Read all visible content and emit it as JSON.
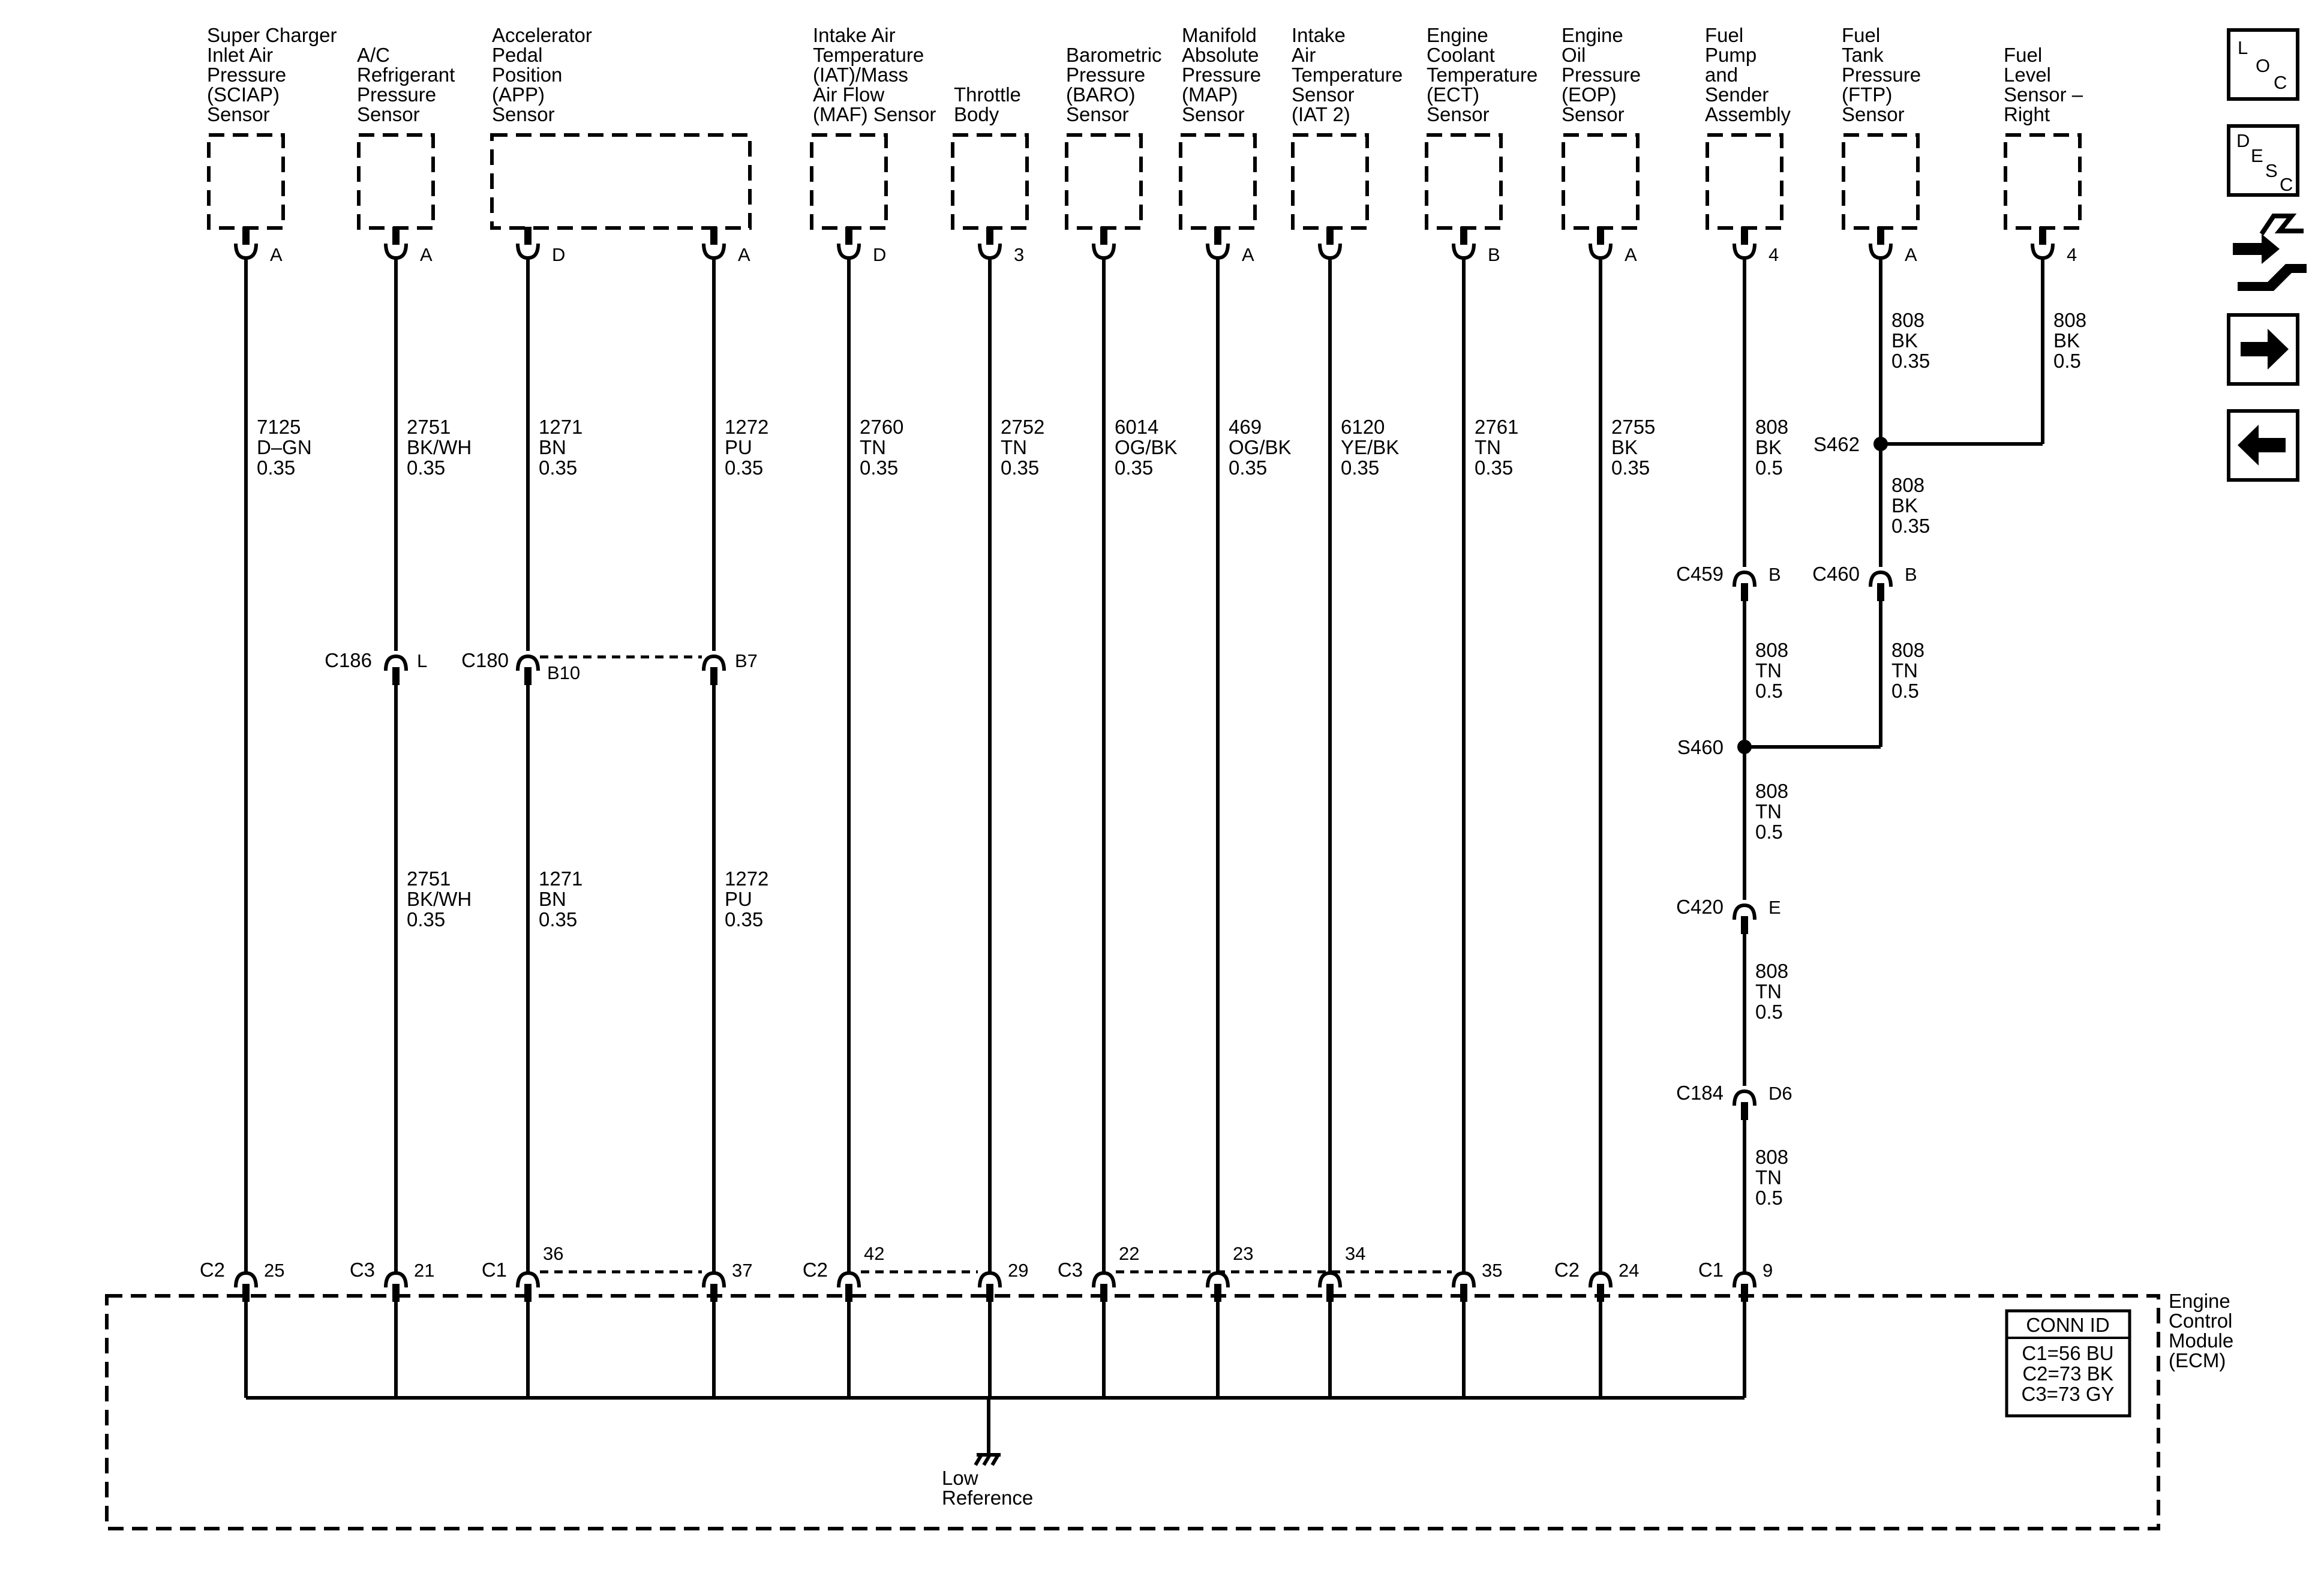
{
  "sensors": [
    {
      "label": [
        "Super Charger",
        "Inlet Air",
        "Pressure",
        "(SCIAP)",
        "Sensor"
      ],
      "pin": "A"
    },
    {
      "label": [
        "A/C",
        "Refrigerant",
        "Pressure",
        "Sensor"
      ],
      "pin": "A"
    },
    {
      "label": [
        "Accelerator",
        "Pedal",
        "Position",
        "(APP)",
        "Sensor"
      ],
      "pins": [
        "D",
        "A"
      ]
    },
    {
      "label": [
        "Intake Air",
        "Temperature",
        "(IAT)/Mass",
        "Air Flow",
        "(MAF) Sensor"
      ],
      "pin": "D"
    },
    {
      "label": [
        "Throttle",
        "Body"
      ],
      "pin": "3"
    },
    {
      "label": [
        "Barometric",
        "Pressure",
        "(BARO)",
        "Sensor"
      ],
      "pin": ""
    },
    {
      "label": [
        "Manifold",
        "Absolute",
        "Pressure",
        "(MAP)",
        "Sensor"
      ],
      "pin": "A"
    },
    {
      "label": [
        "Intake",
        "Air",
        "Temperature",
        "Sensor",
        "(IAT 2)"
      ],
      "pin": ""
    },
    {
      "label": [
        "Engine",
        "Coolant",
        "Temperature",
        "(ECT)",
        "Sensor"
      ],
      "pin": "B"
    },
    {
      "label": [
        "Engine",
        "Oil",
        "Pressure",
        "(EOP)",
        "Sensor"
      ],
      "pin": "A"
    },
    {
      "label": [
        "Fuel",
        "Pump",
        "and",
        "Sender",
        "Assembly"
      ],
      "pin": "4"
    },
    {
      "label": [
        "Fuel",
        "Tank",
        "Pressure",
        "(FTP)",
        "Sensor"
      ],
      "pin": "A"
    },
    {
      "label": [
        "Fuel",
        "Level",
        "Sensor –",
        "Right"
      ],
      "pin": "4"
    }
  ],
  "wires": [
    {
      "upper": [
        "7125",
        "D–GN",
        "0.35"
      ]
    },
    {
      "upper": [
        "2751",
        "BK/WH",
        "0.35"
      ],
      "lower": [
        "2751",
        "BK/WH",
        "0.35"
      ]
    },
    {
      "upper": [
        "1271",
        "BN",
        "0.35"
      ],
      "lower": [
        "1271",
        "BN",
        "0.35"
      ]
    },
    {
      "upper": [
        "1272",
        "PU",
        "0.35"
      ],
      "lower": [
        "1272",
        "PU",
        "0.35"
      ]
    },
    {
      "upper": [
        "2760",
        "TN",
        "0.35"
      ]
    },
    {
      "upper": [
        "2752",
        "TN",
        "0.35"
      ]
    },
    {
      "upper": [
        "6014",
        "OG/BK",
        "0.35"
      ]
    },
    {
      "upper": [
        "469",
        "OG/BK",
        "0.35"
      ]
    },
    {
      "upper": [
        "6120",
        "YE/BK",
        "0.35"
      ]
    },
    {
      "upper": [
        "2761",
        "TN",
        "0.35"
      ]
    },
    {
      "upper": [
        "2755",
        "BK",
        "0.35"
      ]
    }
  ],
  "fuel_circuit": {
    "pump_top": [
      "808",
      "BK",
      "0.5"
    ],
    "ftp_top": [
      "808",
      "BK",
      "0.35"
    ],
    "level_top": [
      "808",
      "BK",
      "0.5"
    ],
    "ftp_mid": [
      "808",
      "BK",
      "0.35"
    ],
    "pump_mid": [
      "808",
      "TN",
      "0.5"
    ],
    "ftp_low": [
      "808",
      "TN",
      "0.5"
    ],
    "main_1": [
      "808",
      "TN",
      "0.5"
    ],
    "main_2": [
      "808",
      "TN",
      "0.5"
    ],
    "main_3": [
      "808",
      "TN",
      "0.5"
    ]
  },
  "splices": {
    "s462": "S462",
    "s460": "S460"
  },
  "inline_connectors": {
    "c186": {
      "name": "C186",
      "pin": "L"
    },
    "c180": {
      "name": "C180",
      "pin_left": "B10",
      "pin_right": "B7"
    },
    "c459": {
      "name": "C459",
      "pin": "B"
    },
    "c460": {
      "name": "C460",
      "pin": "B"
    },
    "c420": {
      "name": "C420",
      "pin": "E"
    },
    "c184": {
      "name": "C184",
      "pin": "D6"
    }
  },
  "ecm_pins": [
    {
      "conn": "C2",
      "pin": "25"
    },
    {
      "conn": "C3",
      "pin": "21"
    },
    {
      "conn": "C1",
      "pin": "36"
    },
    {
      "conn": "",
      "pin": "37"
    },
    {
      "conn": "C2",
      "pin": "42"
    },
    {
      "conn": "",
      "pin": "29"
    },
    {
      "conn": "C3",
      "pin": "22"
    },
    {
      "conn": "",
      "pin": "23"
    },
    {
      "conn": "",
      "pin": "34"
    },
    {
      "conn": "",
      "pin": "35"
    },
    {
      "conn": "C2",
      "pin": "24"
    },
    {
      "conn": "C1",
      "pin": "9"
    }
  ],
  "ecm": {
    "label": [
      "Engine",
      "Control",
      "Module",
      "(ECM)"
    ],
    "low_ref": [
      "Low",
      "Reference"
    ],
    "conn_id_title": "CONN ID",
    "conn_id_lines": [
      "C1=56 BU",
      "C2=73 BK",
      "C3=73 GY"
    ]
  },
  "nav": {
    "loc_letters": [
      "L",
      "O",
      "C"
    ],
    "desc_letters": [
      "D",
      "E",
      "S",
      "C"
    ],
    "icons": [
      "loc-icon",
      "desc-icon",
      "schematic-flow-icon",
      "next-arrow-icon",
      "previous-arrow-icon"
    ]
  }
}
